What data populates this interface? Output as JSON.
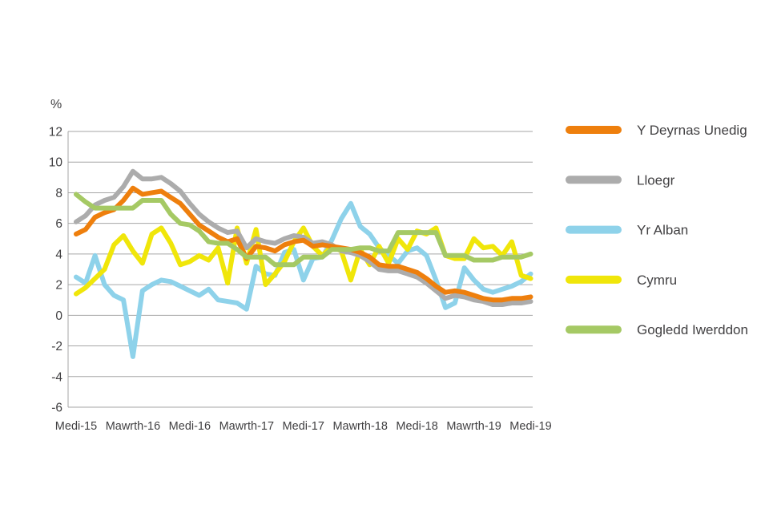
{
  "chart_data": {
    "type": "line",
    "title": "",
    "ylabel": "%",
    "xlabel": "",
    "ylim": [
      -6,
      12
    ],
    "ytick_step": 2,
    "ytick_labels": [
      "12",
      "10",
      "8",
      "6",
      "4",
      "2",
      "0",
      "-2",
      "-4",
      "-6"
    ],
    "grid": true,
    "legend_position": "right",
    "n_points": 49,
    "x_tick_every": 6,
    "x_tick_labels": [
      "Medi-15",
      "Mawrth-16",
      "Medi-16",
      "Mawrth-17",
      "Medi-17",
      "Mawrth-18",
      "Medi-18",
      "Mawrth-19",
      "Medi-19"
    ],
    "series": [
      {
        "name": "Y Deyrnas Unedig",
        "color": "#EE7F0D",
        "values": [
          5.3,
          5.6,
          6.4,
          6.7,
          6.9,
          7.5,
          8.3,
          7.9,
          8.0,
          8.1,
          7.7,
          7.3,
          6.6,
          5.9,
          5.5,
          5.1,
          4.8,
          5.0,
          3.7,
          4.5,
          4.4,
          4.2,
          4.6,
          4.8,
          4.9,
          4.5,
          4.6,
          4.5,
          4.4,
          4.3,
          4.1,
          3.8,
          3.3,
          3.2,
          3.2,
          3.0,
          2.8,
          2.4,
          1.9,
          1.5,
          1.6,
          1.5,
          1.3,
          1.1,
          1.0,
          1.0,
          1.1,
          1.1,
          1.2
        ]
      },
      {
        "name": "Lloegr",
        "color": "#ACACAC",
        "values": [
          6.1,
          6.5,
          7.2,
          7.5,
          7.7,
          8.4,
          9.4,
          8.9,
          8.9,
          9.0,
          8.6,
          8.1,
          7.3,
          6.6,
          6.1,
          5.7,
          5.4,
          5.5,
          4.4,
          5.0,
          4.8,
          4.7,
          5.0,
          5.2,
          5.1,
          4.7,
          4.8,
          4.6,
          4.2,
          4.1,
          3.9,
          3.5,
          3.0,
          2.9,
          2.9,
          2.7,
          2.5,
          2.1,
          1.6,
          1.1,
          1.3,
          1.2,
          1.0,
          0.9,
          0.7,
          0.7,
          0.8,
          0.8,
          0.9
        ]
      },
      {
        "name": "Yr Alban",
        "color": "#8ED2EA",
        "values": [
          2.5,
          2.1,
          3.9,
          2.0,
          1.3,
          1.0,
          -2.7,
          1.6,
          2.0,
          2.3,
          2.2,
          1.9,
          1.6,
          1.3,
          1.7,
          1.0,
          0.9,
          0.8,
          0.4,
          3.2,
          2.7,
          2.6,
          4.1,
          4.3,
          2.3,
          3.7,
          3.8,
          4.9,
          6.3,
          7.3,
          5.8,
          5.3,
          4.4,
          3.9,
          3.4,
          4.2,
          4.4,
          3.9,
          2.3,
          0.5,
          0.8,
          3.1,
          2.3,
          1.7,
          1.5,
          1.7,
          1.9,
          2.2,
          2.7
        ]
      },
      {
        "name": "Cymru",
        "color": "#F0E60A",
        "values": [
          1.4,
          1.8,
          2.4,
          3.0,
          4.6,
          5.2,
          4.2,
          3.4,
          5.3,
          5.7,
          4.7,
          3.3,
          3.5,
          3.9,
          3.6,
          4.4,
          2.1,
          5.7,
          3.4,
          5.6,
          2.0,
          2.7,
          3.5,
          4.8,
          5.7,
          4.5,
          3.9,
          4.5,
          4.2,
          2.3,
          4.3,
          3.3,
          4.5,
          3.4,
          5.0,
          4.3,
          5.5,
          5.3,
          5.7,
          3.9,
          3.7,
          3.7,
          5.0,
          4.4,
          4.5,
          3.9,
          4.8,
          2.6,
          2.4
        ]
      },
      {
        "name": "Gogledd Iwerddon",
        "color": "#A5C964",
        "values": [
          7.9,
          7.4,
          7.0,
          7.0,
          7.0,
          7.0,
          7.0,
          7.5,
          7.5,
          7.5,
          6.6,
          6.0,
          5.9,
          5.5,
          4.8,
          4.7,
          4.7,
          4.3,
          3.8,
          3.8,
          3.8,
          3.3,
          3.3,
          3.3,
          3.8,
          3.8,
          3.8,
          4.3,
          4.3,
          4.3,
          4.4,
          4.4,
          4.2,
          4.2,
          5.4,
          5.4,
          5.4,
          5.4,
          5.4,
          3.9,
          3.9,
          3.9,
          3.6,
          3.6,
          3.6,
          3.8,
          3.8,
          3.8,
          4.0
        ]
      }
    ],
    "draw_order": [
      "Yr Alban",
      "Cymru",
      "Lloegr",
      "Y Deyrnas Unedig",
      "Gogledd Iwerddon"
    ],
    "grid_color": "#A6A6A6",
    "line_width": 6
  }
}
